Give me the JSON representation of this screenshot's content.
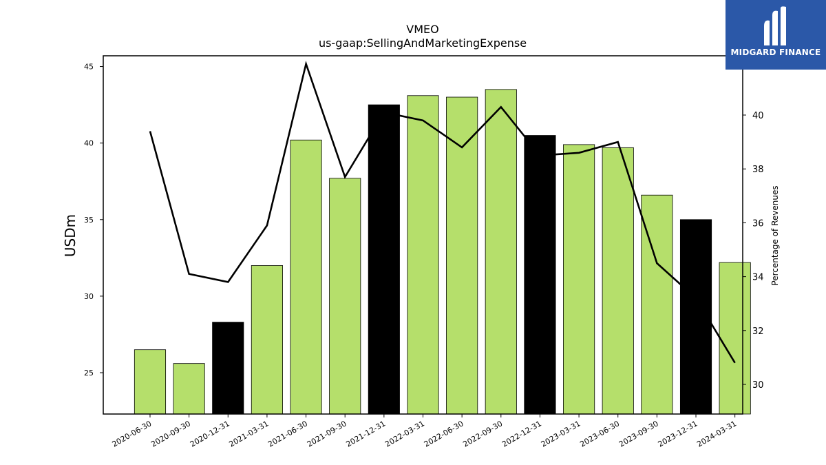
{
  "chart_data": {
    "type": "bar",
    "title": "VMEO",
    "subtitle": "us-gaap:SellingAndMarketingExpense",
    "ylabel": "USDm",
    "y2label": "Percentage of Revenues",
    "categories": [
      "2020-06-30",
      "2020-09-30",
      "2020-12-31",
      "2021-03-31",
      "2021-06-30",
      "2021-09-30",
      "2021-12-31",
      "2022-03-31",
      "2022-06-30",
      "2022-09-30",
      "2022-12-31",
      "2023-03-31",
      "2023-06-30",
      "2023-09-30",
      "2023-12-31",
      "2024-03-31"
    ],
    "series": [
      {
        "type": "bar",
        "values": [
          26.5,
          25.6,
          28.3,
          32.0,
          40.2,
          37.7,
          42.5,
          43.1,
          43.0,
          43.5,
          40.5,
          39.9,
          39.7,
          36.6,
          35.0,
          32.2
        ]
      },
      {
        "type": "line",
        "axis": "right",
        "values": [
          39.4,
          34.1,
          33.8,
          35.9,
          41.9,
          37.7,
          40.1,
          39.8,
          38.8,
          40.3,
          38.5,
          38.6,
          39.0,
          34.5,
          33.2,
          30.8
        ]
      }
    ],
    "bar_highlight_quarters": [
      2,
      6,
      10,
      14
    ],
    "ylim": [
      22.3,
      45.7
    ],
    "y2lim": [
      28.9,
      42.2
    ],
    "yticks": [
      25,
      30,
      35,
      40,
      45
    ],
    "y2ticks": [
      30,
      32,
      34,
      36,
      38,
      40
    ],
    "colors": {
      "bar": "#b5df6b",
      "bar_highlight": "#000000",
      "line": "#000000"
    },
    "grid": false,
    "legend": "none"
  },
  "logo": {
    "text": "MIDGARD FINANCE",
    "color": "#2b58a8",
    "icon": "midgard-logo-icon"
  }
}
